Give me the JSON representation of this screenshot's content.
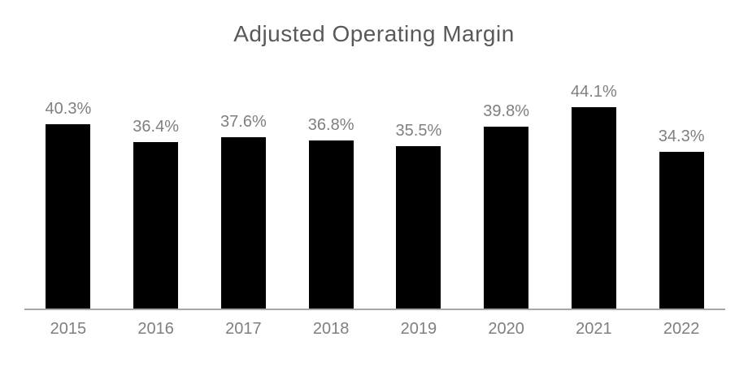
{
  "chart_data": {
    "type": "bar",
    "title": "Adjusted Operating Margin",
    "categories": [
      "2015",
      "2016",
      "2017",
      "2018",
      "2019",
      "2020",
      "2021",
      "2022"
    ],
    "values": [
      40.3,
      36.4,
      37.6,
      36.8,
      35.5,
      39.8,
      44.1,
      34.3
    ],
    "value_labels": [
      "40.3%",
      "36.4%",
      "37.6%",
      "36.8%",
      "35.5%",
      "39.8%",
      "44.1%",
      "34.3%"
    ],
    "unit": "%",
    "xlabel": "",
    "ylabel": "",
    "baseline": 0,
    "grid": false,
    "legend": false,
    "y_axis_visible": false,
    "x_axis_line_visible": true,
    "colors": {
      "bar": "#000000",
      "title": "#595959",
      "value_label": "#7f7f7f",
      "category_label": "#7f7f7f",
      "axis_line": "#a6a6a6"
    }
  }
}
